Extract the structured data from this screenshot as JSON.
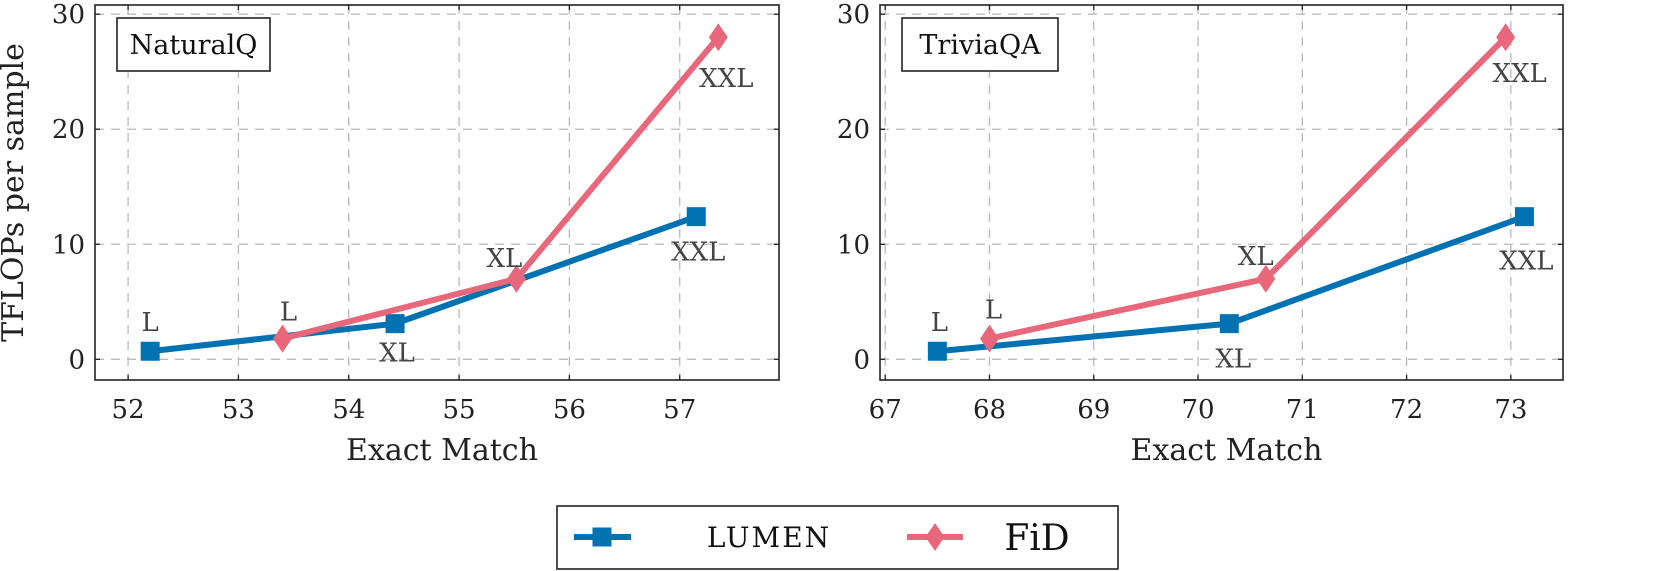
{
  "colors": {
    "lumen": "#0072B2",
    "fid": "#E8677A"
  },
  "legend": {
    "entries": [
      "LUMEN",
      "FiD"
    ]
  },
  "chart_data": [
    {
      "type": "line",
      "title": "NaturalQ",
      "xlabel": "Exact Match",
      "ylabel": "TFLOPs per sample",
      "xlim": [
        51.7,
        57.9
      ],
      "ylim": [
        -1.8,
        30.8
      ],
      "xticks": [
        52,
        53,
        54,
        55,
        56,
        57
      ],
      "yticks": [
        0,
        10,
        20,
        30
      ],
      "grid": true,
      "series": [
        {
          "name": "LUMEN",
          "marker": "square",
          "points": [
            {
              "x": 52.2,
              "y": 0.7,
              "label": "L"
            },
            {
              "x": 54.42,
              "y": 3.1,
              "label": "XL"
            },
            {
              "x": 57.15,
              "y": 12.4,
              "label": "XXL"
            }
          ]
        },
        {
          "name": "FiD",
          "marker": "diamond",
          "points": [
            {
              "x": 53.4,
              "y": 1.8,
              "label": "L"
            },
            {
              "x": 55.52,
              "y": 7.0,
              "label": "XL"
            },
            {
              "x": 57.35,
              "y": 28.0,
              "label": "XXL"
            }
          ]
        }
      ]
    },
    {
      "type": "line",
      "title": "TriviaQA",
      "xlabel": "Exact Match",
      "ylabel": "",
      "xlim": [
        66.95,
        73.5
      ],
      "ylim": [
        -1.8,
        30.8
      ],
      "xticks": [
        67,
        68,
        69,
        70,
        71,
        72,
        73
      ],
      "yticks": [
        0,
        10,
        20,
        30
      ],
      "grid": true,
      "series": [
        {
          "name": "LUMEN",
          "marker": "square",
          "points": [
            {
              "x": 67.5,
              "y": 0.7,
              "label": "L"
            },
            {
              "x": 70.3,
              "y": 3.1,
              "label": "XL"
            },
            {
              "x": 73.13,
              "y": 12.4,
              "label": "XXL"
            }
          ]
        },
        {
          "name": "FiD",
          "marker": "diamond",
          "points": [
            {
              "x": 68.0,
              "y": 1.8,
              "label": "L"
            },
            {
              "x": 70.65,
              "y": 7.0,
              "label": "XL"
            },
            {
              "x": 72.95,
              "y": 28.0,
              "label": "XXL"
            }
          ]
        }
      ]
    }
  ]
}
